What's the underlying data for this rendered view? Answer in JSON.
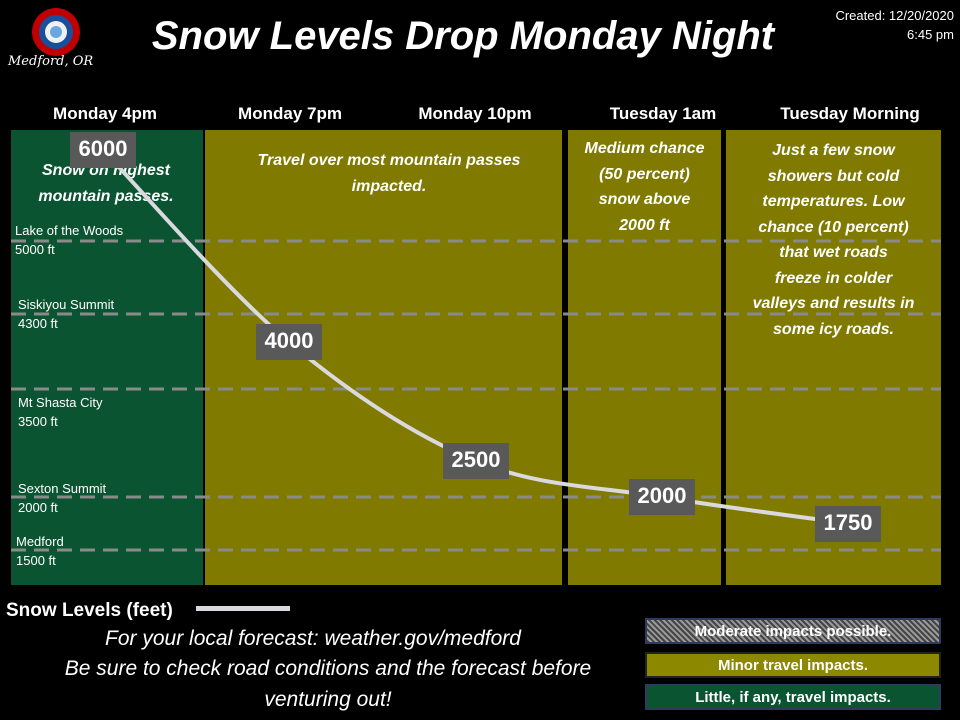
{
  "header": {
    "title": "Snow Levels Drop Monday Night",
    "created_line1": "Created: 12/20/2020",
    "created_line2": "6:45 pm",
    "office": "Medford, OR",
    "logo_text": "NATIONAL WEATHER SERVICE"
  },
  "columns": [
    {
      "label": "Monday 4pm"
    },
    {
      "label": "Monday 7pm"
    },
    {
      "label": "Monday 10pm"
    },
    {
      "label": "Tuesday 1am"
    },
    {
      "label": "Tuesday Morning"
    }
  ],
  "panel_notes": {
    "p1": [
      "Snow on highest",
      "mountain passes."
    ],
    "p2": [
      "Travel over most mountain passes",
      "impacted."
    ],
    "p3": [
      "Medium chance",
      "(50 percent)",
      "snow above",
      "2000 ft"
    ],
    "p4": [
      "Just a few snow",
      "showers but cold",
      "temperatures.  Low",
      "chance (10 percent)",
      "that wet roads",
      "freeze in colder",
      "valleys and results in",
      "some icy roads."
    ]
  },
  "panel_colors": {
    "little": "#0a5432",
    "minor": "#807a00"
  },
  "locations": [
    {
      "name": "Lake of the Woods",
      "elev": "5000 ft",
      "value": 5000
    },
    {
      "name": "Siskiyou Summit",
      "elev": "4300 ft",
      "value": 4300
    },
    {
      "name": "Mt Shasta City",
      "elev": "3500 ft",
      "value": 3500
    },
    {
      "name": "Sexton Summit",
      "elev": "2000 ft",
      "value": 2000
    },
    {
      "name": "Medford",
      "elev": "1500 ft",
      "value": 1500
    }
  ],
  "chart_data": {
    "type": "line",
    "x": [
      "Monday 4pm",
      "Monday 7pm",
      "Monday 10pm",
      "Tuesday 1am",
      "Tuesday Morning"
    ],
    "series": [
      {
        "name": "Snow Levels (feet)",
        "values": [
          6000,
          4000,
          2500,
          2000,
          1750
        ],
        "color": "#d9d9de"
      }
    ],
    "data_labels": [
      "6000",
      "4000",
      "2500",
      "2000",
      "1750"
    ]
  },
  "legend": {
    "label": "Snow Levels (feet)"
  },
  "footer": {
    "line1": "For your local forecast: weather.gov/medford",
    "line2": "Be sure to check road conditions and the forecast before",
    "line3": "venturing out!"
  },
  "impacts": {
    "moderate": "Moderate impacts possible.",
    "minor": "Minor travel impacts.",
    "little": "Little, if any, travel impacts."
  }
}
